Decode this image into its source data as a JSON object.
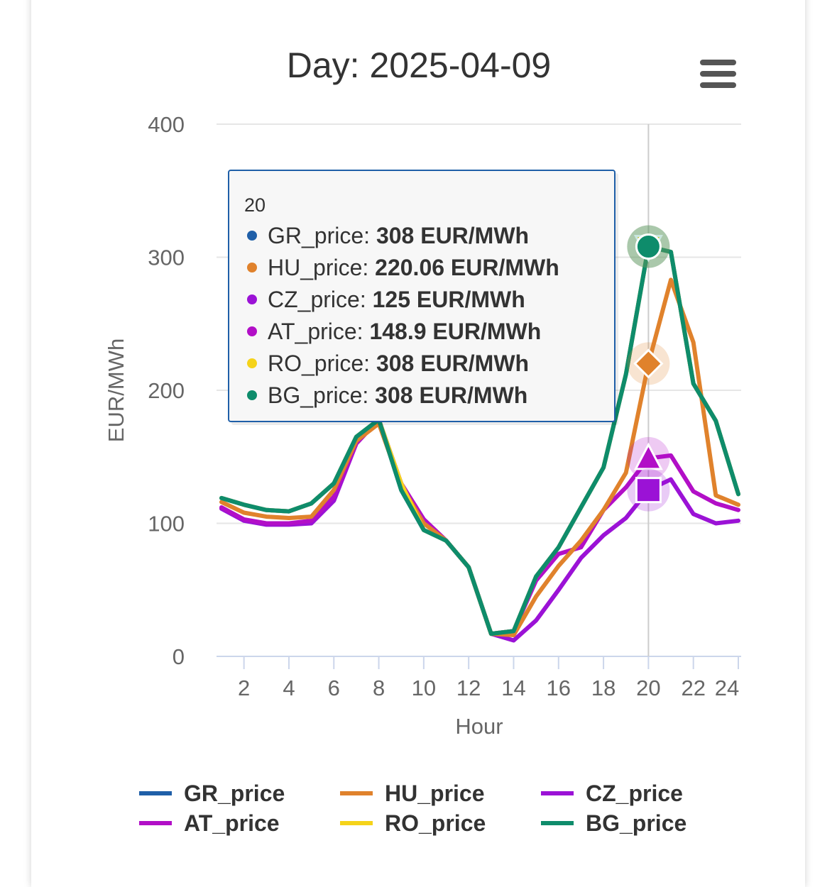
{
  "chart_data": {
    "type": "line",
    "title": "Day: 2025-04-09",
    "xlabel": "Hour",
    "ylabel": "EUR/MWh",
    "ylim": [
      0,
      400
    ],
    "xlim": [
      1,
      24
    ],
    "x_ticks": [
      "2",
      "4",
      "6",
      "8",
      "10",
      "12",
      "14",
      "16",
      "18",
      "20",
      "22",
      "24"
    ],
    "y_ticks": [
      "0",
      "100",
      "200",
      "300",
      "400"
    ],
    "grid": true,
    "legend_position": "bottom",
    "x": [
      1,
      2,
      3,
      4,
      5,
      6,
      7,
      8,
      9,
      10,
      11,
      12,
      13,
      14,
      15,
      16,
      17,
      18,
      19,
      20,
      21,
      22,
      23,
      24
    ],
    "series": [
      {
        "name": "GR_price",
        "color": "#1f5fa8",
        "values": [
          119,
          114,
          110,
          109,
          115,
          130,
          165,
          178,
          125,
          95,
          87,
          67,
          17,
          19,
          60,
          82,
          112,
          142,
          212,
          308,
          304,
          205,
          177,
          122
        ]
      },
      {
        "name": "HU_price",
        "color": "#e0822c",
        "values": [
          116,
          108,
          105,
          104,
          105,
          125,
          162,
          175,
          128,
          100,
          87,
          67,
          17,
          16,
          45,
          68,
          87,
          110,
          138,
          220.06,
          283,
          236,
          121,
          114
        ]
      },
      {
        "name": "CZ_price",
        "color": "#9b12d6",
        "values": [
          111,
          102,
          99,
          99,
          100,
          117,
          160,
          178,
          128,
          103,
          87,
          67,
          17,
          12,
          27,
          50,
          74,
          91,
          104,
          125,
          133,
          107,
          100,
          102
        ]
      },
      {
        "name": "AT_price",
        "color": "#b20fc7",
        "values": [
          112,
          103,
          100,
          100,
          102,
          120,
          160,
          178,
          130,
          103,
          87,
          67,
          17,
          19,
          57,
          77,
          82,
          110,
          127,
          148.9,
          151,
          124,
          115,
          110
        ]
      },
      {
        "name": "RO_price",
        "color": "#f5d31a",
        "values": [
          119,
          114,
          110,
          109,
          115,
          130,
          165,
          178,
          130,
          95,
          87,
          67,
          17,
          19,
          60,
          82,
          112,
          142,
          212,
          308,
          304,
          205,
          177,
          122
        ]
      },
      {
        "name": "BG_price",
        "color": "#0e8c6b",
        "values": [
          119,
          114,
          110,
          109,
          115,
          130,
          165,
          178,
          125,
          95,
          87,
          67,
          17,
          19,
          60,
          82,
          112,
          142,
          212,
          308,
          304,
          205,
          177,
          122
        ]
      }
    ],
    "tooltip": {
      "header": "20",
      "entries": [
        {
          "label": "GR_price: ",
          "value": "308 EUR/MWh",
          "color": "#1f5fa8"
        },
        {
          "label": "HU_price: ",
          "value": "220.06 EUR/MWh",
          "color": "#e0822c"
        },
        {
          "label": "CZ_price: ",
          "value": "125 EUR/MWh",
          "color": "#9b12d6"
        },
        {
          "label": "AT_price: ",
          "value": "148.9 EUR/MWh",
          "color": "#b20fc7"
        },
        {
          "label": "RO_price: ",
          "value": "308 EUR/MWh",
          "color": "#f5d31a"
        },
        {
          "label": "BG_price: ",
          "value": "308 EUR/MWh",
          "color": "#0e8c6b"
        }
      ]
    },
    "hover_x": 20
  },
  "menu_icon": "hamburger-menu-icon"
}
